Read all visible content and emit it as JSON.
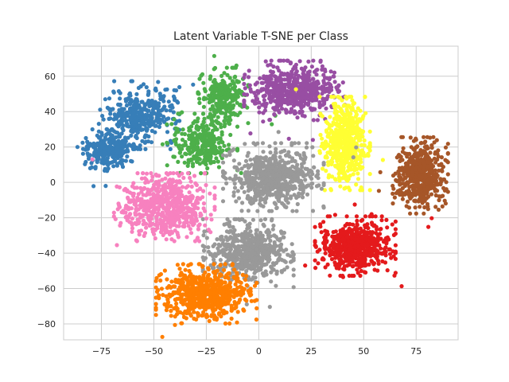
{
  "chart_data": {
    "type": "scatter",
    "title": "Latent Variable T-SNE per Class",
    "xlabel": "",
    "ylabel": "",
    "xlim": [
      -93,
      95
    ],
    "ylim": [
      -89,
      77
    ],
    "xticks": [
      -75,
      -50,
      -25,
      0,
      25,
      50,
      75
    ],
    "yticks": [
      -80,
      -60,
      -40,
      -20,
      0,
      20,
      40,
      60
    ],
    "xtick_labels": [
      "−75",
      "−50",
      "−25",
      "0",
      "25",
      "50",
      "75"
    ],
    "ytick_labels": [
      "−80",
      "−60",
      "−40",
      "−20",
      "0",
      "20",
      "40",
      "60"
    ],
    "grid": true,
    "legend": false,
    "series": [
      {
        "color": "#377eb8",
        "clusters": [
          {
            "cx": -72,
            "cy": 18,
            "sx": 6,
            "sy": 5,
            "n": 260
          },
          {
            "cx": -57,
            "cy": 38,
            "sx": 8,
            "sy": 8,
            "n": 360
          }
        ]
      },
      {
        "color": "#4daf4a",
        "clusters": [
          {
            "cx": -27,
            "cy": 22,
            "sx": 7,
            "sy": 7,
            "n": 300
          },
          {
            "cx": -17,
            "cy": 48,
            "sx": 5,
            "sy": 7,
            "n": 260
          }
        ]
      },
      {
        "color": "#984ea3",
        "clusters": [
          {
            "cx": 17,
            "cy": 52,
            "sx": 10,
            "sy": 7,
            "n": 560
          }
        ]
      },
      {
        "color": "#ffff33",
        "clusters": [
          {
            "cx": 41,
            "cy": 22,
            "sx": 5,
            "sy": 11,
            "n": 520
          }
        ]
      },
      {
        "color": "#a65628",
        "clusters": [
          {
            "cx": 77,
            "cy": 4,
            "sx": 5.5,
            "sy": 9,
            "n": 520
          }
        ]
      },
      {
        "color": "#999999",
        "clusters": [
          {
            "cx": 7,
            "cy": 3,
            "sx": 10,
            "sy": 8,
            "n": 640
          },
          {
            "cx": -5,
            "cy": -40,
            "sx": 9,
            "sy": 8,
            "n": 560
          }
        ]
      },
      {
        "color": "#f781bf",
        "clusters": [
          {
            "cx": -45,
            "cy": -14,
            "sx": 10,
            "sy": 8,
            "n": 620
          }
        ]
      },
      {
        "color": "#e41a1c",
        "clusters": [
          {
            "cx": 46,
            "cy": -36,
            "sx": 8,
            "sy": 7,
            "n": 620
          }
        ]
      },
      {
        "color": "#ff7f00",
        "clusters": [
          {
            "cx": -25,
            "cy": -63,
            "sx": 10,
            "sy": 7,
            "n": 640
          }
        ]
      }
    ]
  }
}
